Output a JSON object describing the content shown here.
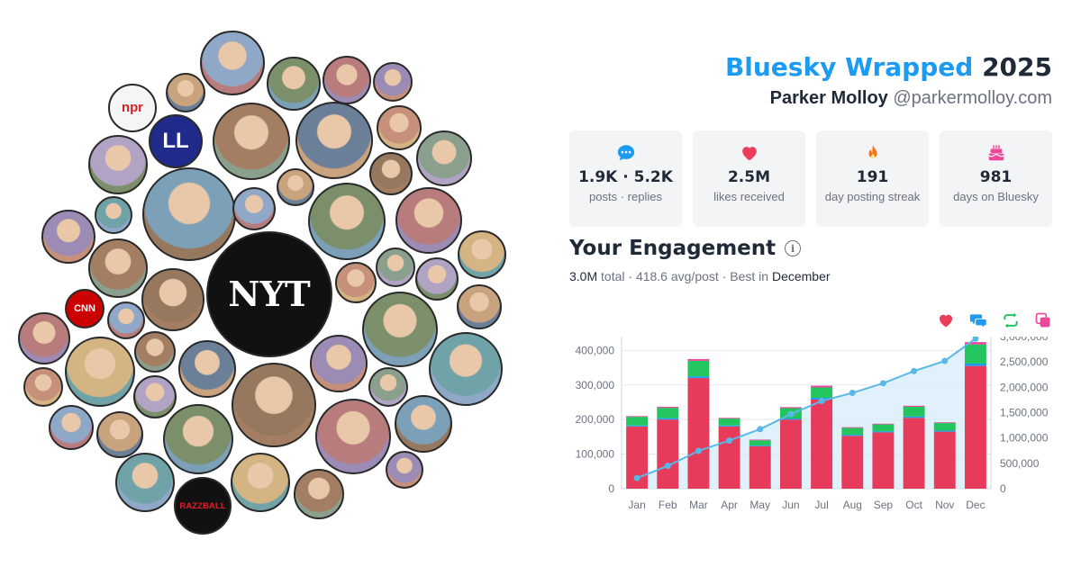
{
  "header": {
    "brand": "Bluesky Wrapped",
    "year": "2025",
    "name": "Parker Molloy",
    "handle": "@parkermolloy.com"
  },
  "stats": [
    {
      "icon": "chat-bubble-icon",
      "color": "#1d9bf0",
      "value": "1.9K · 5.2K",
      "label": "posts · replies"
    },
    {
      "icon": "heart-icon",
      "color": "#ec3e5b",
      "value": "2.5M",
      "label": "likes received"
    },
    {
      "icon": "flame-icon",
      "color": "#f97316",
      "value": "191",
      "label": "day posting streak"
    },
    {
      "icon": "cake-icon",
      "color": "#ec4899",
      "value": "981",
      "label": "days on Bluesky"
    }
  ],
  "engagement": {
    "title": "Your Engagement",
    "total_value": "3.0M",
    "total_label": "total",
    "avg": "418.6 avg/post",
    "best_label": "Best in",
    "best_month": "December"
  },
  "legend": [
    {
      "icon": "heart-icon",
      "color": "#ec3e5b"
    },
    {
      "icon": "reply-icon",
      "color": "#1d9bf0"
    },
    {
      "icon": "repost-icon",
      "color": "#22c55e"
    },
    {
      "icon": "quote-icon",
      "color": "#ec4899"
    }
  ],
  "avatars": [
    {
      "label": "npr",
      "color": "#f5f5f5"
    },
    {
      "label": "LL",
      "color": "#1f2a8a"
    },
    {
      "label": "NYT",
      "color": "#111111"
    },
    {
      "label": "CNN",
      "color": "#cc0000"
    },
    {
      "label": "RAZZBALL",
      "color": "#111111"
    }
  ],
  "chart_data": {
    "type": "bar",
    "categories": [
      "Jan",
      "Feb",
      "Mar",
      "Apr",
      "May",
      "Jun",
      "Jul",
      "Aug",
      "Sep",
      "Oct",
      "Nov",
      "Dec"
    ],
    "series": [
      {
        "values": [
          180000,
          200000,
          320000,
          180000,
          123000,
          200000,
          258000,
          153000,
          163000,
          205000,
          165000,
          355000
        ]
      },
      {
        "values": [
          3000,
          4000,
          5000,
          3000,
          2000,
          3000,
          5000,
          3000,
          3000,
          4000,
          3000,
          7000
        ]
      },
      {
        "values": [
          25000,
          30000,
          45000,
          20000,
          15000,
          30000,
          30000,
          20000,
          20000,
          28000,
          22000,
          55000
        ]
      },
      {
        "values": [
          2000,
          3000,
          5000,
          2000,
          2000,
          3000,
          5000,
          2000,
          2000,
          3000,
          2000,
          7000
        ]
      },
      {
        "values": [
          210000,
          450000,
          745000,
          950000,
          1175000,
          1470000,
          1730000,
          1890000,
          2080000,
          2320000,
          2520000,
          2960000
        ]
      }
    ],
    "y_left": {
      "ylim": [
        0,
        440000
      ],
      "ticks": [
        "0",
        "100,000",
        "200,000",
        "300,000",
        "400,000"
      ]
    },
    "y_right": {
      "ylim": [
        0,
        3000000
      ],
      "ticks": [
        "0",
        "500,000",
        "1,000,000",
        "1,500,000",
        "2,000,000",
        "2,500,000",
        "3,000,000"
      ]
    },
    "colors": {
      "likes": "#e63b5b",
      "replies": "#1d9bf0",
      "reposts": "#22c55e",
      "quotes": "#ec4899",
      "line": "#5ab8e8",
      "area": "#d6ecf9"
    },
    "grid": true
  }
}
